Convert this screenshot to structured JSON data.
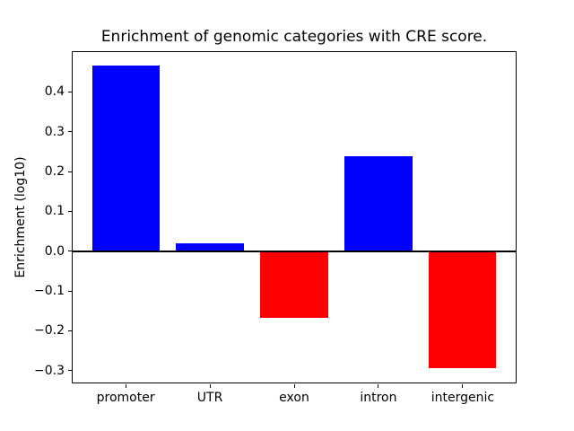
{
  "chart_data": {
    "type": "bar",
    "title": "Enrichment of genomic categories with CRE score.",
    "xlabel": "",
    "ylabel": "Enrichment (log10)",
    "categories": [
      "promoter",
      "UTR",
      "exon",
      "intron",
      "intergenic"
    ],
    "values": [
      0.465,
      0.02,
      -0.168,
      0.238,
      -0.293
    ],
    "bar_colors": [
      "#0000ff",
      "#0000ff",
      "#ff0000",
      "#0000ff",
      "#ff0000"
    ],
    "positive_color": "#0000ff",
    "negative_color": "#ff0000",
    "ylim": [
      -0.333,
      0.501
    ],
    "xlim": [
      -0.64,
      4.64
    ],
    "yticks": [
      -0.3,
      -0.2,
      -0.1,
      0.0,
      0.1,
      0.2,
      0.3,
      0.4
    ],
    "ytick_labels": [
      "−0.3",
      "−0.2",
      "−0.1",
      "0.0",
      "0.1",
      "0.2",
      "0.3",
      "0.4"
    ],
    "bar_width_units": 0.8,
    "zero_line": true,
    "grid": false,
    "legend": "none"
  }
}
